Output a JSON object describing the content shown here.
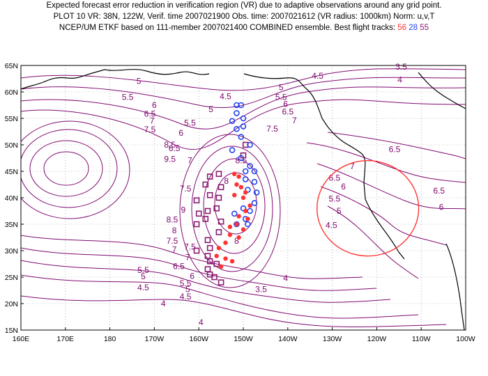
{
  "title": {
    "line1": "Expected forecast error reduction in verification region (VR) due to adaptive observations around any grid point.",
    "line2": "PLOT 10 VR: 38N, 122W, Verif. time 2007021900 Obs. time: 2007021612 (VR radius: 1000km) Norm: u,v,T",
    "line3_prefix": "NCEP/UM ETKF based on 111-member 2007021400 COMBINED ensemble.  Best flight tracks: ",
    "track_a": "56",
    "track_b": "28",
    "track_c": "55"
  },
  "axes": {
    "lat_labels": [
      "65N",
      "60N",
      "55N",
      "50N",
      "45N",
      "40N",
      "35N",
      "30N",
      "25N",
      "20N",
      "15N"
    ],
    "lon_labels": [
      "160E",
      "170E",
      "180",
      "170W",
      "160W",
      "150W",
      "140W",
      "130W",
      "120W",
      "110W",
      "100W"
    ]
  },
  "contour_labels": [
    {
      "text": "5",
      "lon": -173.5,
      "lat": 61.5
    },
    {
      "text": "5.5",
      "lon": -176,
      "lat": 58.5
    },
    {
      "text": "6",
      "lon": -170,
      "lat": 57
    },
    {
      "text": "6.5",
      "lon": -171,
      "lat": 55.3
    },
    {
      "text": "7",
      "lon": -170.5,
      "lat": 54
    },
    {
      "text": "7.5",
      "lon": -171,
      "lat": 52.4
    },
    {
      "text": "8.5",
      "lon": -166.5,
      "lat": 49.5
    },
    {
      "text": "9.5",
      "lon": -166.5,
      "lat": 46.8
    },
    {
      "text": "9",
      "lon": -163.5,
      "lat": 37.2
    },
    {
      "text": "8.5",
      "lon": -166,
      "lat": 35.3
    },
    {
      "text": "8",
      "lon": -165.5,
      "lat": 33.3
    },
    {
      "text": "7.5",
      "lon": -166,
      "lat": 31.3
    },
    {
      "text": "7",
      "lon": -165.5,
      "lat": 29.7
    },
    {
      "text": "5.5",
      "lon": -172.5,
      "lat": 25.8
    },
    {
      "text": "5",
      "lon": -172.5,
      "lat": 24.6
    },
    {
      "text": "4.5",
      "lon": -172.5,
      "lat": 22.5
    },
    {
      "text": "4",
      "lon": -168,
      "lat": 19.5
    },
    {
      "text": "4.5",
      "lon": -154,
      "lat": 58.6
    },
    {
      "text": "5",
      "lon": -157.3,
      "lat": 56.2
    },
    {
      "text": "5.5",
      "lon": -162,
      "lat": 53.6
    },
    {
      "text": "6",
      "lon": -164,
      "lat": 51.7
    },
    {
      "text": "6.5",
      "lon": -165.5,
      "lat": 48.8
    },
    {
      "text": "7",
      "lon": -162,
      "lat": 46.5
    },
    {
      "text": "7.5",
      "lon": -163,
      "lat": 41.2
    },
    {
      "text": "8",
      "lon": -153.8,
      "lat": 42.6
    },
    {
      "text": "8.5",
      "lon": -150.5,
      "lat": 46.5
    },
    {
      "text": "8",
      "lon": -151.5,
      "lat": 31.3
    },
    {
      "text": "7.5",
      "lon": -162,
      "lat": 30.2
    },
    {
      "text": "7",
      "lon": -162.5,
      "lat": 28.2
    },
    {
      "text": "6.5",
      "lon": -164.5,
      "lat": 26.5
    },
    {
      "text": "6",
      "lon": -161.5,
      "lat": 24.7
    },
    {
      "text": "5.5",
      "lon": -163,
      "lat": 23.3
    },
    {
      "text": "5",
      "lon": -162.5,
      "lat": 22.2
    },
    {
      "text": "4.5",
      "lon": -163,
      "lat": 20.8
    },
    {
      "text": "4",
      "lon": -159.5,
      "lat": 15.9
    },
    {
      "text": "4",
      "lon": -140.5,
      "lat": 24.3
    },
    {
      "text": "3.5",
      "lon": -146,
      "lat": 22.2
    },
    {
      "text": "4.5",
      "lon": -133.3,
      "lat": 62.5
    },
    {
      "text": "3.5",
      "lon": -114.5,
      "lat": 64.2
    },
    {
      "text": "4",
      "lon": -114.8,
      "lat": 61.8
    },
    {
      "text": "5",
      "lon": -141.5,
      "lat": 60.3
    },
    {
      "text": "5.5",
      "lon": -141.5,
      "lat": 58.5
    },
    {
      "text": "6",
      "lon": -140.5,
      "lat": 57.2
    },
    {
      "text": "6.5",
      "lon": -140,
      "lat": 55.7
    },
    {
      "text": "7",
      "lon": -138.5,
      "lat": 54.1
    },
    {
      "text": "7.5",
      "lon": -143.5,
      "lat": 52.5
    },
    {
      "text": "6.5",
      "lon": -116,
      "lat": 48.6
    },
    {
      "text": "6.5",
      "lon": -106,
      "lat": 40.8
    },
    {
      "text": "6",
      "lon": -105.5,
      "lat": 37.7
    },
    {
      "text": "7",
      "lon": -125.5,
      "lat": 45.4
    },
    {
      "text": "6.5",
      "lon": -129.5,
      "lat": 43.2
    },
    {
      "text": "6",
      "lon": -127.5,
      "lat": 41.6
    },
    {
      "text": "5.5",
      "lon": -129.5,
      "lat": 39.3
    },
    {
      "text": "5",
      "lon": -128.5,
      "lat": 37
    },
    {
      "text": "4.5",
      "lon": -130.2,
      "lat": 34.3
    }
  ],
  "tracks": {
    "red_dots": [
      [
        -152,
        44.5
      ],
      [
        -151,
        44
      ],
      [
        -151.5,
        42.5
      ],
      [
        -150.5,
        42
      ],
      [
        -149.5,
        41
      ],
      [
        -152,
        40.5
      ],
      [
        -150,
        40
      ],
      [
        -148.5,
        38.5
      ],
      [
        -149.5,
        37.5
      ],
      [
        -151,
        36.5
      ],
      [
        -149,
        36
      ],
      [
        -151.5,
        35
      ],
      [
        -153,
        34.5
      ],
      [
        -150,
        34
      ],
      [
        -153,
        33
      ],
      [
        -151,
        32.5
      ],
      [
        -154,
        31.5
      ],
      [
        -155.5,
        30.5
      ],
      [
        -156,
        29
      ],
      [
        -154,
        28.5
      ],
      [
        -152.5,
        28
      ],
      [
        -155,
        27
      ]
    ],
    "blue_circles": [
      [
        -151.5,
        57.5
      ],
      [
        -150.5,
        57.5
      ],
      [
        -151.5,
        56
      ],
      [
        -150,
        55
      ],
      [
        -152.5,
        54.5
      ],
      [
        -150,
        53.5
      ],
      [
        -151.5,
        53
      ],
      [
        -150.5,
        51.5
      ],
      [
        -148.5,
        50
      ],
      [
        -152.5,
        49
      ],
      [
        -150.5,
        47.5
      ],
      [
        -148.5,
        46
      ],
      [
        -149.5,
        45
      ],
      [
        -147.5,
        45
      ],
      [
        -149.5,
        43.5
      ],
      [
        -147.5,
        43
      ],
      [
        -149,
        41.5
      ],
      [
        -147,
        41
      ],
      [
        -147.5,
        39
      ],
      [
        -150,
        38
      ],
      [
        -148.5,
        37.5
      ],
      [
        -152,
        37
      ],
      [
        -149.5,
        36
      ],
      [
        -151.5,
        35
      ],
      [
        -149,
        35
      ]
    ],
    "purple_squares": [
      [
        -149.5,
        50
      ],
      [
        -150,
        48
      ],
      [
        -155.5,
        44.5
      ],
      [
        -157.5,
        44
      ],
      [
        -158.5,
        42.5
      ],
      [
        -155,
        42
      ],
      [
        -157.5,
        40.5
      ],
      [
        -155.5,
        40
      ],
      [
        -160.5,
        39.5
      ],
      [
        -156,
        38
      ],
      [
        -158,
        37.5
      ],
      [
        -160,
        37
      ],
      [
        -158.5,
        36
      ],
      [
        -155,
        35.5
      ],
      [
        -160.5,
        35
      ],
      [
        -155.5,
        33.5
      ],
      [
        -158,
        32
      ],
      [
        -157.5,
        30.5
      ],
      [
        -160.5,
        30
      ],
      [
        -158,
        29
      ],
      [
        -157.5,
        28
      ],
      [
        -156,
        27.5
      ],
      [
        -158,
        26.5
      ],
      [
        -157.5,
        25.5
      ],
      [
        -156.5,
        25
      ],
      [
        -155,
        24
      ]
    ]
  },
  "verification_region": {
    "center_lat": 38,
    "center_lon": -122,
    "radius_km": 1000
  },
  "colors": {
    "contour": "#800a70",
    "coast": "#000000",
    "red": "#ff3333",
    "blue": "#2244ee",
    "purple": "#8a1a6e",
    "vr_circle": "#ff3333"
  }
}
